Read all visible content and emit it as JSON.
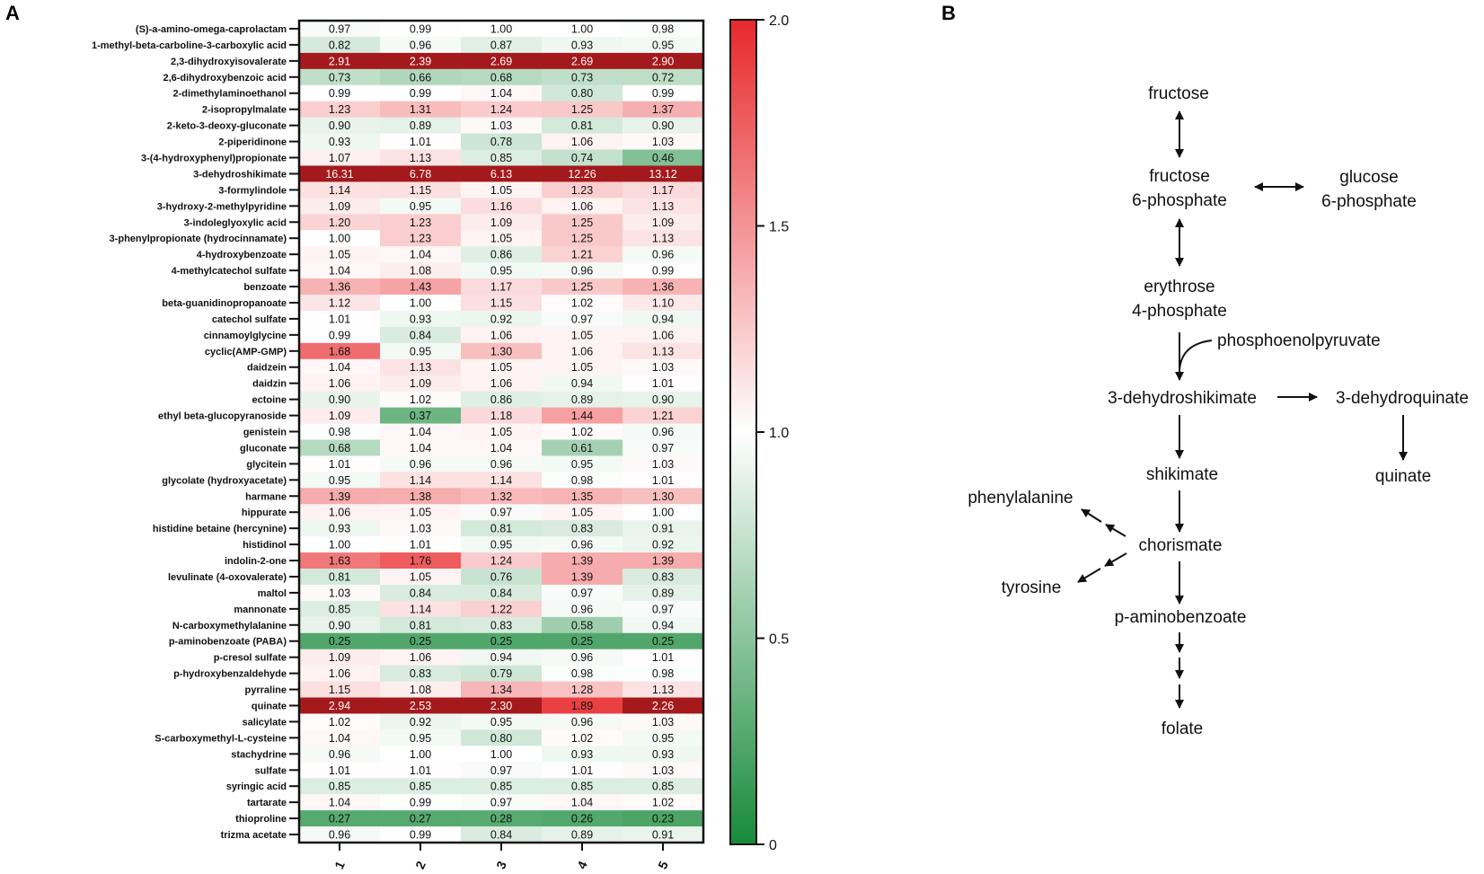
{
  "panels": {
    "a": "A",
    "b": "B"
  },
  "chart_data": {
    "type": "heatmap",
    "columns": [
      "1",
      "2",
      "3",
      "4",
      "5"
    ],
    "rows": [
      "(S)-a-amino-omega-caprolactam",
      "1-methyl-beta-carboline-3-carboxylic acid",
      "2,3-dihydroxyisovalerate",
      "2,6-dihydroxybenzoic acid",
      "2-dimethylaminoethanol",
      "2-isopropylmalate",
      "2-keto-3-deoxy-gluconate",
      "2-piperidinone",
      "3-(4-hydroxyphenyl)propionate",
      "3-dehydroshikimate",
      "3-formylindole",
      "3-hydroxy-2-methylpyridine",
      "3-indoleglyoxylic acid",
      "3-phenylpropionate (hydrocinnamate)",
      "4-hydroxybenzoate",
      "4-methylcatechol sulfate",
      "benzoate",
      "beta-guanidinopropanoate",
      "catechol sulfate",
      "cinnamoylglycine",
      "cyclic(AMP-GMP)",
      "daidzein",
      "daidzin",
      "ectoine",
      "ethyl beta-glucopyranoside",
      "genistein",
      "gluconate",
      "glycitein",
      "glycolate (hydroxyacetate)",
      "harmane",
      "hippurate",
      "histidine betaine (hercynine)",
      "histidinol",
      "indolin-2-one",
      "levulinate (4-oxovalerate)",
      "maltol",
      "mannonate",
      "N-carboxymethylalanine",
      "p-aminobenzoate (PABA)",
      "p-cresol sulfate",
      "p-hydroxybenzaldehyde",
      "pyrraline",
      "quinate",
      "salicylate",
      "S-carboxymethyl-L-cysteine",
      "stachydrine",
      "sulfate",
      "syringic acid",
      "tartarate",
      "thioproline",
      "trizma acetate"
    ],
    "values": [
      [
        "0.97",
        "0.99",
        "1.00",
        "1.00",
        "0.98"
      ],
      [
        "0.82",
        "0.96",
        "0.87",
        "0.93",
        "0.95"
      ],
      [
        "2.91",
        "2.39",
        "2.69",
        "2.69",
        "2.90"
      ],
      [
        "0.73",
        "0.66",
        "0.68",
        "0.73",
        "0.72"
      ],
      [
        "0.99",
        "0.99",
        "1.04",
        "0.80",
        "0.99"
      ],
      [
        "1.23",
        "1.31",
        "1.24",
        "1.25",
        "1.37"
      ],
      [
        "0.90",
        "0.89",
        "1.03",
        "0.81",
        "0.90"
      ],
      [
        "0.93",
        "1.01",
        "0.78",
        "1.06",
        "1.03"
      ],
      [
        "1.07",
        "1.13",
        "0.85",
        "0.74",
        "0.46"
      ],
      [
        "16.31",
        "6.78",
        "6.13",
        "12.26",
        "13.12"
      ],
      [
        "1.14",
        "1.15",
        "1.05",
        "1.23",
        "1.17"
      ],
      [
        "1.09",
        "0.95",
        "1.16",
        "1.06",
        "1.13"
      ],
      [
        "1.20",
        "1.23",
        "1.09",
        "1.25",
        "1.09"
      ],
      [
        "1.00",
        "1.23",
        "1.05",
        "1.25",
        "1.13"
      ],
      [
        "1.05",
        "1.04",
        "0.86",
        "1.21",
        "0.96"
      ],
      [
        "1.04",
        "1.08",
        "0.95",
        "0.96",
        "0.99"
      ],
      [
        "1.36",
        "1.43",
        "1.17",
        "1.25",
        "1.36"
      ],
      [
        "1.12",
        "1.00",
        "1.15",
        "1.02",
        "1.10"
      ],
      [
        "1.01",
        "0.93",
        "0.92",
        "0.97",
        "0.94"
      ],
      [
        "0.99",
        "0.84",
        "1.06",
        "1.05",
        "1.06"
      ],
      [
        "1.68",
        "0.95",
        "1.30",
        "1.06",
        "1.13"
      ],
      [
        "1.04",
        "1.13",
        "1.05",
        "1.05",
        "1.03"
      ],
      [
        "1.06",
        "1.09",
        "1.06",
        "0.94",
        "1.01"
      ],
      [
        "0.90",
        "1.02",
        "0.86",
        "0.89",
        "0.90"
      ],
      [
        "1.09",
        "0.37",
        "1.18",
        "1.44",
        "1.21"
      ],
      [
        "0.98",
        "1.04",
        "1.05",
        "1.02",
        "0.96"
      ],
      [
        "0.68",
        "1.04",
        "1.04",
        "0.61",
        "0.97"
      ],
      [
        "1.01",
        "0.96",
        "0.96",
        "0.95",
        "1.03"
      ],
      [
        "0.95",
        "1.14",
        "1.14",
        "0.98",
        "1.01"
      ],
      [
        "1.39",
        "1.38",
        "1.32",
        "1.35",
        "1.30"
      ],
      [
        "1.06",
        "1.05",
        "0.97",
        "1.05",
        "1.00"
      ],
      [
        "0.93",
        "1.03",
        "0.81",
        "0.83",
        "0.91"
      ],
      [
        "1.00",
        "1.01",
        "0.95",
        "0.96",
        "0.92"
      ],
      [
        "1.63",
        "1.76",
        "1.24",
        "1.39",
        "1.39"
      ],
      [
        "0.81",
        "1.05",
        "0.76",
        "1.39",
        "0.83"
      ],
      [
        "1.03",
        "0.84",
        "0.84",
        "0.97",
        "0.89"
      ],
      [
        "0.85",
        "1.14",
        "1.22",
        "0.96",
        "0.97"
      ],
      [
        "0.90",
        "0.81",
        "0.83",
        "0.58",
        "0.94"
      ],
      [
        "0.25",
        "0.25",
        "0.25",
        "0.25",
        "0.25"
      ],
      [
        "1.09",
        "1.06",
        "0.94",
        "0.96",
        "1.01"
      ],
      [
        "1.06",
        "0.83",
        "0.79",
        "0.98",
        "0.98"
      ],
      [
        "1.15",
        "1.08",
        "1.34",
        "1.28",
        "1.13"
      ],
      [
        "2.94",
        "2.53",
        "2.30",
        "1.89",
        "2.26"
      ],
      [
        "1.02",
        "0.92",
        "0.95",
        "0.96",
        "1.03"
      ],
      [
        "1.04",
        "0.95",
        "0.80",
        "1.02",
        "0.95"
      ],
      [
        "0.96",
        "1.00",
        "1.00",
        "0.93",
        "0.93"
      ],
      [
        "1.01",
        "1.01",
        "0.97",
        "1.01",
        "1.03"
      ],
      [
        "0.85",
        "0.85",
        "0.85",
        "0.85",
        "0.85"
      ],
      [
        "1.04",
        "0.99",
        "0.97",
        "1.04",
        "1.02"
      ],
      [
        "0.27",
        "0.27",
        "0.28",
        "0.26",
        "0.23"
      ],
      [
        "0.96",
        "0.99",
        "0.84",
        "0.89",
        "0.91"
      ]
    ],
    "color_scale": {
      "min": 0,
      "mid": 1.0,
      "max": 2.0,
      "ticks": [
        "2.0",
        "1.5",
        "1.0",
        "0.5",
        "0"
      ],
      "low_color": "#178a3a",
      "mid_color": "#ffffff",
      "high_color": "#e8282b",
      "above_max_color": "#a4191c"
    }
  },
  "pathway": {
    "nodes": {
      "fructose": "fructose",
      "f6p_line1": "fructose",
      "f6p_line2": "6-phosphate",
      "g6p_line1": "glucose",
      "g6p_line2": "6-phosphate",
      "e4p_line1": "erythrose",
      "e4p_line2": "4-phosphate",
      "pep": "phosphoenolpyruvate",
      "dhs": "3-dehydroshikimate",
      "dhq": "3-dehydroquinate",
      "shikimate": "shikimate",
      "quinate": "quinate",
      "phenylalanine": "phenylalanine",
      "chorismate": "chorismate",
      "tyrosine": "tyrosine",
      "paba": "p-aminobenzoate",
      "folate": "folate"
    }
  }
}
